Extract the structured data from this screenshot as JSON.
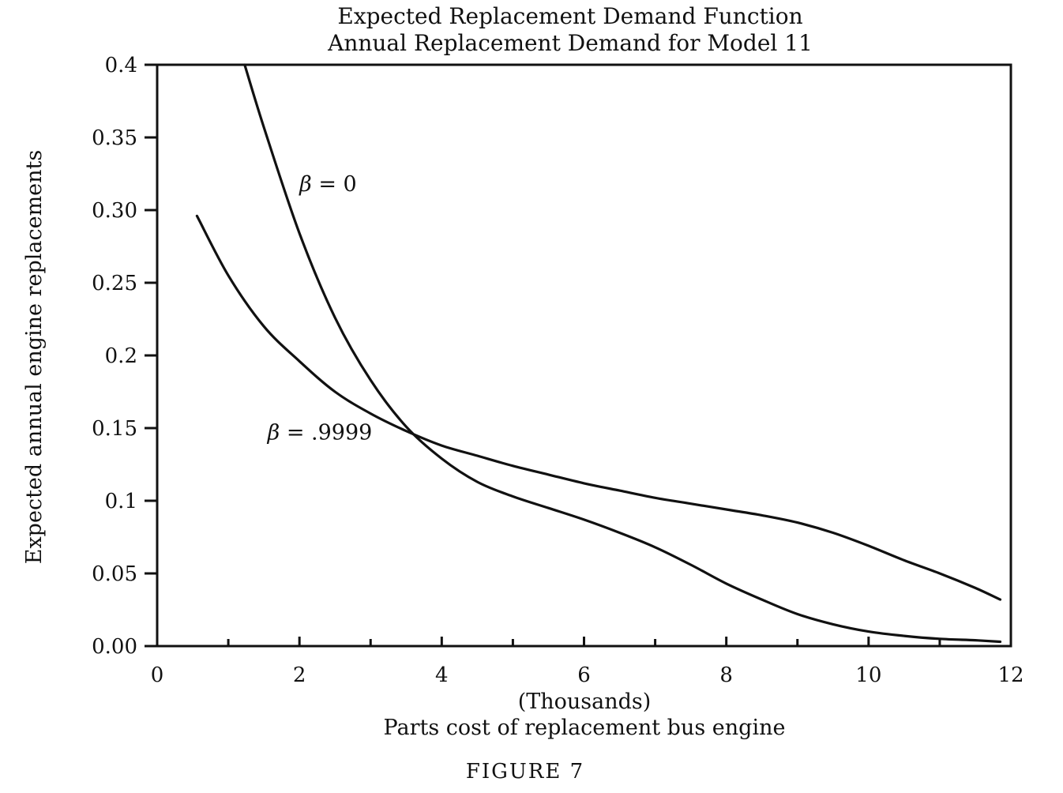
{
  "chart_data": {
    "type": "line",
    "title": "Expected Replacement Demand Function",
    "subtitle": "Annual Replacement Demand for Model 11",
    "xlabel": "Parts cost of replacement bus engine",
    "xunit_label": "(Thousands)",
    "ylabel": "Expected annual engine replacements",
    "caption": "FIGURE 7",
    "xlim": [
      0,
      12
    ],
    "ylim": [
      0,
      0.4
    ],
    "x_ticks": [
      0,
      2,
      4,
      6,
      8,
      10,
      12
    ],
    "x_tick_labels": [
      "0",
      "2",
      "4",
      "6",
      "8",
      "10",
      "12"
    ],
    "y_ticks": [
      0,
      0.05,
      0.1,
      0.15,
      0.2,
      0.25,
      0.3,
      0.35,
      0.4
    ],
    "y_tick_labels": [
      "0.00",
      "0.05",
      "0.1",
      "0.15",
      "0.2",
      "0.25",
      "0.30",
      "0.35",
      "0.4"
    ],
    "grid": false,
    "legend": "none",
    "line_color": "#111111",
    "series": [
      {
        "label_symbol": "β",
        "label_rest": " = 0",
        "label_anchor": [
          2.0,
          0.313
        ],
        "x": [
          1.23,
          1.5,
          2.0,
          2.5,
          3.0,
          3.5,
          4.0,
          4.5,
          5.0,
          5.5,
          6.0,
          6.5,
          7.0,
          7.5,
          8.0,
          8.5,
          9.0,
          9.5,
          10.0,
          10.5,
          11.0,
          11.5,
          11.85
        ],
        "y": [
          0.4,
          0.357,
          0.284,
          0.226,
          0.183,
          0.151,
          0.129,
          0.113,
          0.103,
          0.095,
          0.087,
          0.078,
          0.068,
          0.056,
          0.043,
          0.032,
          0.022,
          0.015,
          0.01,
          0.007,
          0.005,
          0.004,
          0.003
        ]
      },
      {
        "label_symbol": "β",
        "label_rest": " = .9999",
        "label_anchor": [
          1.55,
          0.142
        ],
        "x": [
          0.56,
          1.0,
          1.5,
          2.0,
          2.5,
          3.0,
          3.5,
          4.0,
          4.5,
          5.0,
          5.5,
          6.0,
          6.5,
          7.0,
          7.5,
          8.0,
          8.5,
          9.0,
          9.5,
          10.0,
          10.5,
          11.0,
          11.5,
          11.85
        ],
        "y": [
          0.296,
          0.255,
          0.22,
          0.196,
          0.175,
          0.16,
          0.148,
          0.138,
          0.131,
          0.124,
          0.118,
          0.112,
          0.107,
          0.102,
          0.098,
          0.094,
          0.09,
          0.085,
          0.078,
          0.069,
          0.059,
          0.05,
          0.04,
          0.032
        ]
      }
    ]
  }
}
